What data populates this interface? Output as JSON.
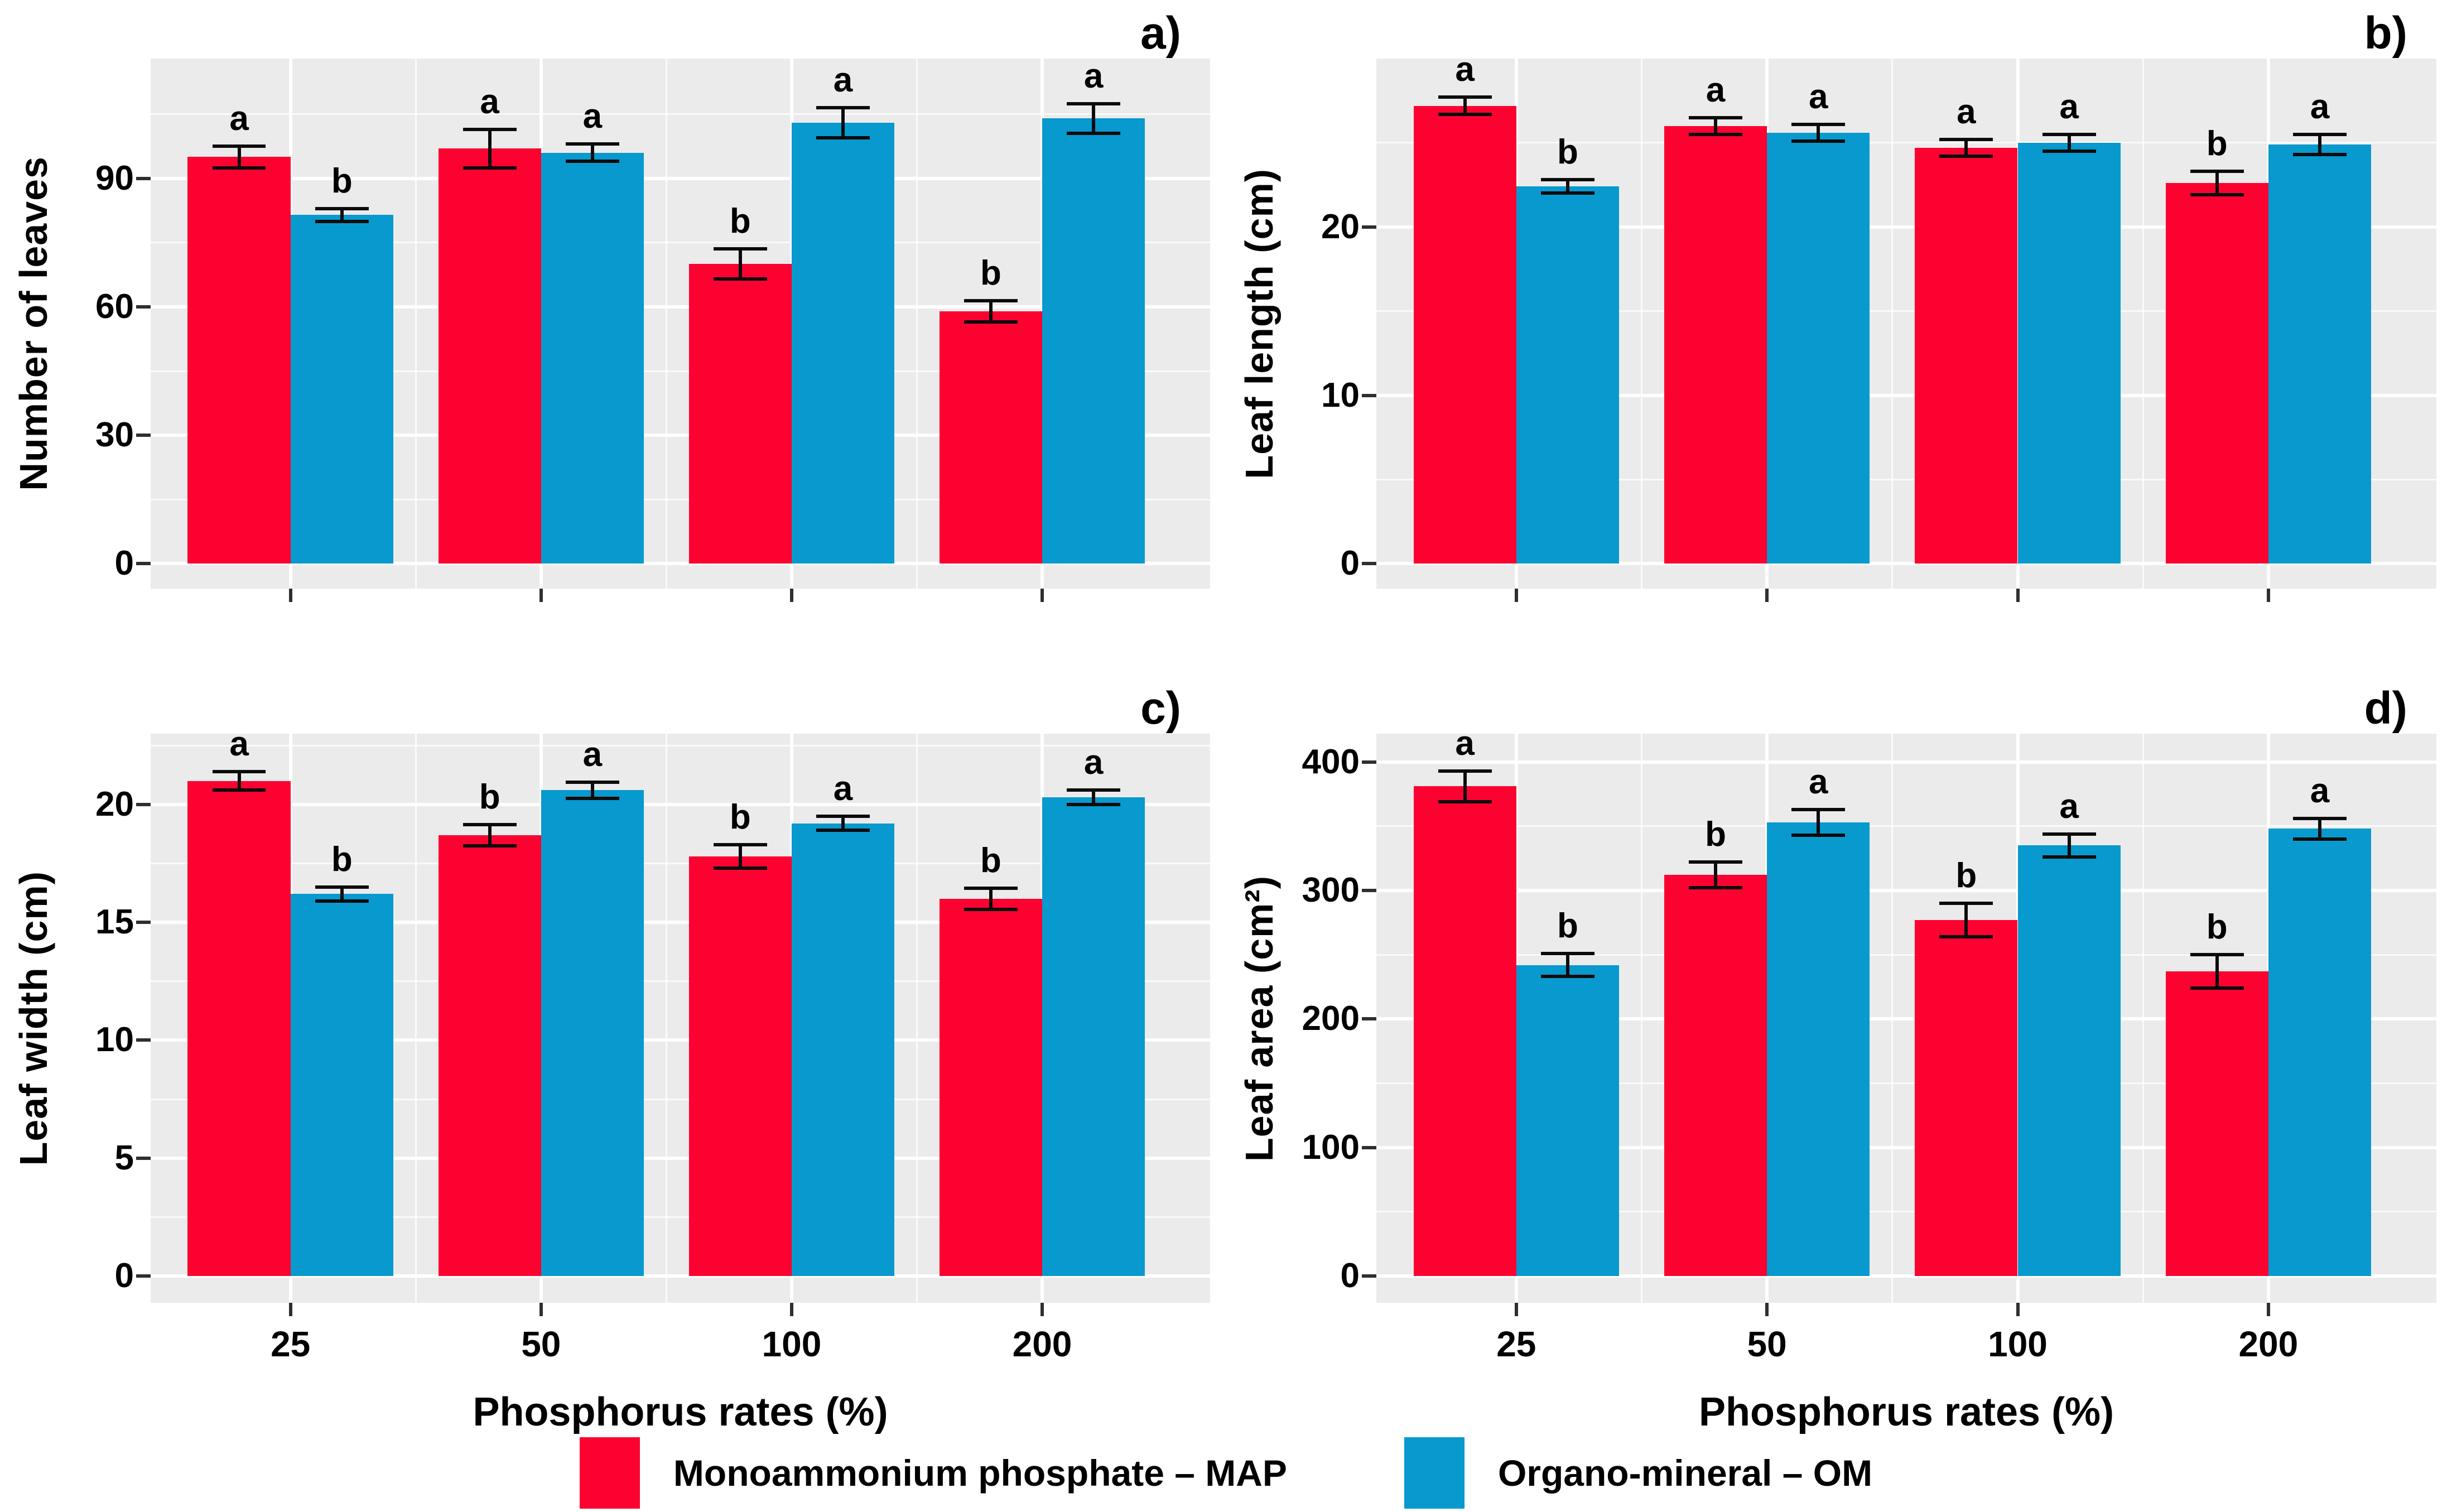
{
  "figure": {
    "background": "#ffffff",
    "panel_background": "#EBEBEB",
    "gridline_color": "#ffffff",
    "tick_color": "#2f2f2f"
  },
  "chart_data": [
    {
      "type": "bar",
      "panel_label": "a)",
      "title": "",
      "ylabel": "Number of leaves",
      "xlabel": "",
      "show_x_labels": false,
      "ylim": [
        0,
        118
      ],
      "ymax": 118,
      "yticks": [
        0,
        30,
        60,
        90
      ],
      "categories": [
        "25",
        "50",
        "100",
        "200"
      ],
      "series": [
        {
          "name": "Monoammonium phosphate – MAP",
          "color": "#FB0230",
          "values": [
            95,
            97,
            70,
            59
          ],
          "errors": [
            2.5,
            4.5,
            3.5,
            2.5
          ],
          "letters": [
            "a",
            "a",
            "b",
            "b"
          ]
        },
        {
          "name": "Organo-mineral – OM",
          "color": "#0899CE",
          "values": [
            81.5,
            96,
            103,
            104
          ],
          "errors": [
            1.5,
            2,
            3.5,
            3.5
          ],
          "letters": [
            "b",
            "a",
            "a",
            "a"
          ]
        }
      ]
    },
    {
      "type": "bar",
      "panel_label": "b)",
      "title": "",
      "ylabel": "Leaf length (cm)",
      "xlabel": "",
      "show_x_labels": false,
      "ylim": [
        0,
        30
      ],
      "ymax": 30,
      "yticks": [
        0,
        10,
        20
      ],
      "categories": [
        "25",
        "50",
        "100",
        "200"
      ],
      "series": [
        {
          "name": "Monoammonium phosphate – MAP",
          "color": "#FB0230",
          "values": [
            27.2,
            26,
            24.7,
            22.6
          ],
          "errors": [
            0.5,
            0.5,
            0.5,
            0.7
          ],
          "letters": [
            "a",
            "a",
            "a",
            "b"
          ]
        },
        {
          "name": "Organo-mineral – OM",
          "color": "#0899CE",
          "values": [
            22.4,
            25.6,
            25,
            24.9
          ],
          "errors": [
            0.4,
            0.5,
            0.5,
            0.6
          ],
          "letters": [
            "b",
            "a",
            "a",
            "a"
          ]
        }
      ]
    },
    {
      "type": "bar",
      "panel_label": "c)",
      "title": "",
      "ylabel": "Leaf width (cm)",
      "xlabel": "Phosphorus rates (%)",
      "show_x_labels": true,
      "ylim": [
        0,
        23
      ],
      "ymax": 23,
      "yticks": [
        0,
        5,
        10,
        15,
        20
      ],
      "categories": [
        "25",
        "50",
        "100",
        "200"
      ],
      "series": [
        {
          "name": "Monoammonium phosphate – MAP",
          "color": "#FB0230",
          "values": [
            21,
            18.7,
            17.8,
            16
          ],
          "errors": [
            0.4,
            0.45,
            0.5,
            0.45
          ],
          "letters": [
            "a",
            "b",
            "b",
            "b"
          ]
        },
        {
          "name": "Organo-mineral – OM",
          "color": "#0899CE",
          "values": [
            16.2,
            20.6,
            19.2,
            20.3
          ],
          "errors": [
            0.3,
            0.35,
            0.3,
            0.3
          ],
          "letters": [
            "b",
            "a",
            "a",
            "a"
          ]
        }
      ]
    },
    {
      "type": "bar",
      "panel_label": "d)",
      "title": "",
      "ylabel": "Leaf area (cm²)",
      "xlabel": "Phosphorus rates (%)",
      "show_x_labels": true,
      "ylim": [
        0,
        422
      ],
      "ymax": 422,
      "yticks": [
        0,
        100,
        200,
        300,
        400
      ],
      "categories": [
        "25",
        "50",
        "100",
        "200"
      ],
      "series": [
        {
          "name": "Monoammonium phosphate – MAP",
          "color": "#FB0230",
          "values": [
            381,
            312,
            277,
            237
          ],
          "errors": [
            12,
            10,
            13,
            13
          ],
          "letters": [
            "a",
            "b",
            "b",
            "b"
          ]
        },
        {
          "name": "Organo-mineral – OM",
          "color": "#0899CE",
          "values": [
            242,
            353,
            335,
            348
          ],
          "errors": [
            9,
            10,
            9,
            8
          ],
          "letters": [
            "b",
            "a",
            "a",
            "a"
          ]
        }
      ]
    }
  ],
  "legend": {
    "position": "bottom-center",
    "items": [
      {
        "label": "Monoammonium phosphate – MAP",
        "color": "#FB0230"
      },
      {
        "label": "Organo-mineral – OM",
        "color": "#0899CE"
      }
    ]
  }
}
